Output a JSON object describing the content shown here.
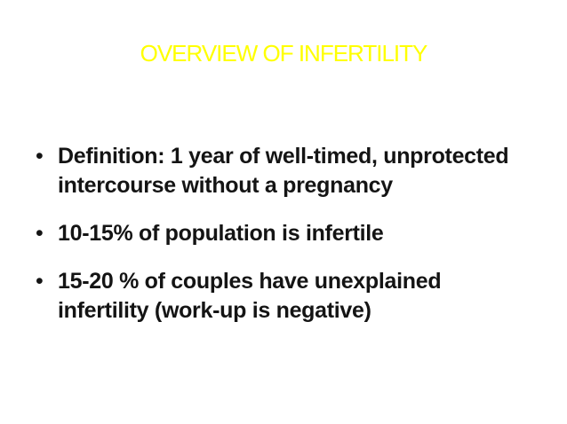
{
  "slide": {
    "title": "OVERVIEW OF INFERTILITY",
    "title_color": "#FFFF00",
    "text_color": "#141414",
    "background_color": "#FFFFFF",
    "bullet_glyph": "•",
    "bullets": [
      {
        "lines": [
          "Definition: 1 year of well-timed, unprotected",
          "intercourse without a pregnancy"
        ]
      },
      {
        "lines": [
          "10-15% of population is infertile"
        ]
      },
      {
        "lines": [
          "15-20 % of couples have unexplained",
          "infertility (work-up is negative)"
        ]
      }
    ]
  }
}
